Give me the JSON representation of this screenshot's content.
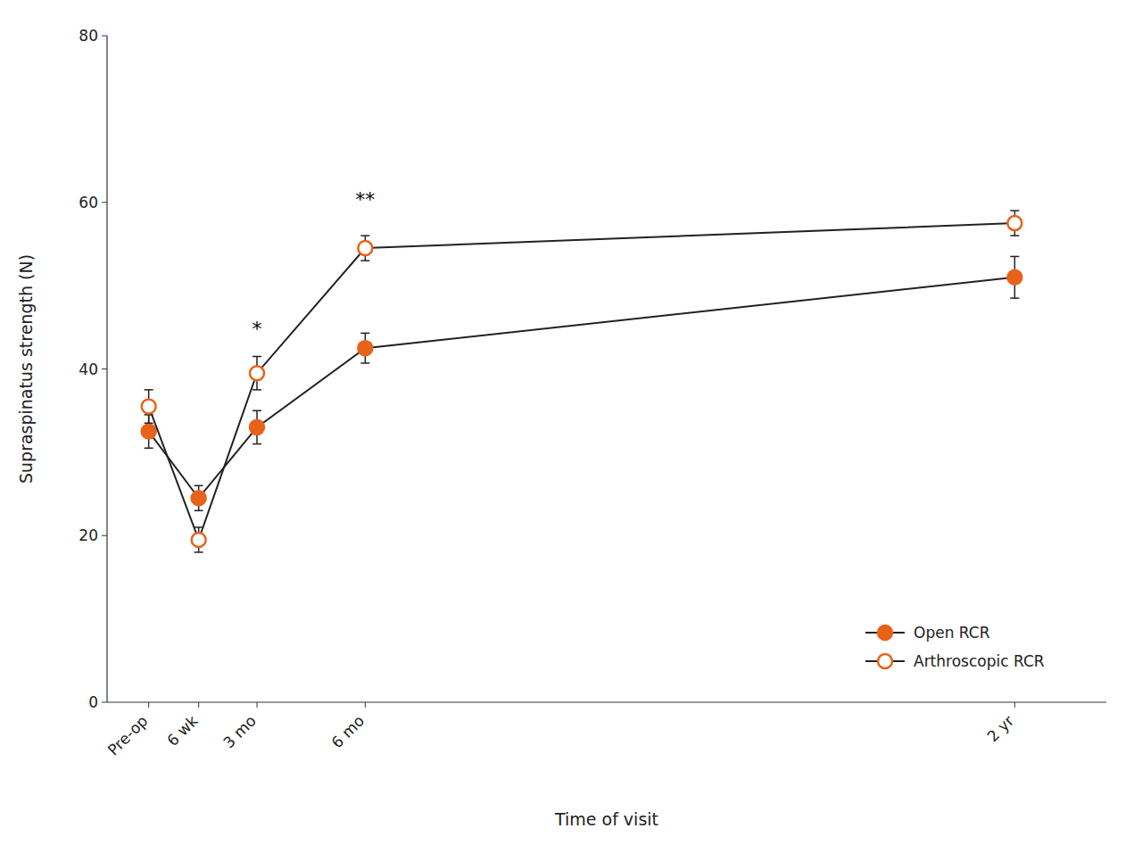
{
  "chart_data": {
    "type": "line",
    "xlabel": "Time of visit",
    "ylabel": "Supraspinatus strength (N)",
    "x": [
      0,
      6,
      13,
      26,
      104
    ],
    "xlim": [
      -5,
      115
    ],
    "xticks": [
      {
        "value": 0,
        "label": "Pre-op"
      },
      {
        "value": 6,
        "label": "6 wk"
      },
      {
        "value": 13,
        "label": "3 mo"
      },
      {
        "value": 26,
        "label": "6 mo"
      },
      {
        "value": 104,
        "label": "2 yr"
      }
    ],
    "ylim": [
      0,
      80
    ],
    "yticks": [
      0,
      20,
      40,
      60,
      80
    ],
    "grid": false,
    "legend": "lower right",
    "series": [
      {
        "name": "Open RCR",
        "color": "#E8621A",
        "marker": "circle",
        "line_style": "solid",
        "values": [
          32.5,
          24.5,
          33.0,
          42.5,
          51.0
        ],
        "errors": [
          2.0,
          1.5,
          2.0,
          1.8,
          2.5
        ]
      },
      {
        "name": "Arthroscopic RCR",
        "color": "#E8621A",
        "marker": "open-circle",
        "line_style": "solid",
        "values": [
          35.5,
          19.5,
          39.5,
          54.5,
          57.5
        ],
        "errors": [
          2.0,
          1.5,
          2.0,
          1.5,
          1.5
        ]
      }
    ],
    "annotations": [
      {
        "x": 13,
        "y": 44,
        "text": "*"
      },
      {
        "x": 26,
        "y": 59.5,
        "text": "**"
      }
    ]
  }
}
